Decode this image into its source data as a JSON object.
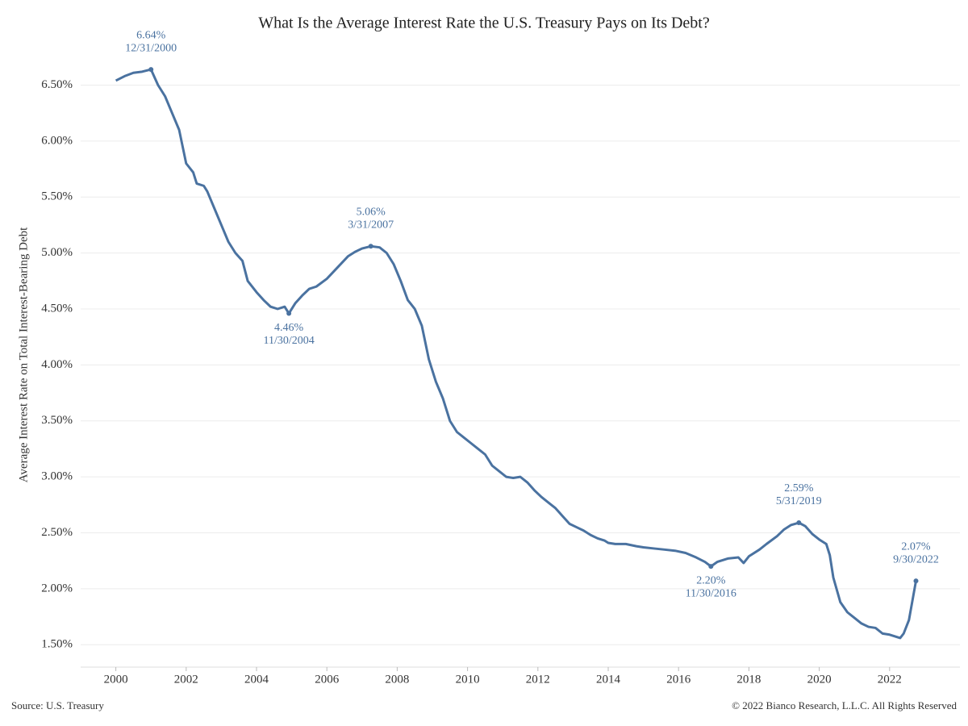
{
  "chart_data": {
    "type": "line",
    "title": "What Is the Average Interest Rate the U.S. Treasury Pays on Its Debt?",
    "y_label": "Average Interest Rate on Total Interest-Bearing Debt",
    "source": "Source: U.S. Treasury",
    "copyright": "© 2022 Bianco Research, L.L.C. All Rights Reserved",
    "color": "#4a72a0",
    "grid": true,
    "xlim": [
      1999,
      2024
    ],
    "ylim": [
      1.3,
      6.9
    ],
    "xticks": [
      2000,
      2002,
      2004,
      2006,
      2008,
      2010,
      2012,
      2014,
      2016,
      2018,
      2020,
      2022
    ],
    "yticks": [
      {
        "value": 1.5,
        "label": "1.50%"
      },
      {
        "value": 2.0,
        "label": "2.00%"
      },
      {
        "value": 2.5,
        "label": "2.50%"
      },
      {
        "value": 3.0,
        "label": "3.00%"
      },
      {
        "value": 3.5,
        "label": "3.50%"
      },
      {
        "value": 4.0,
        "label": "4.00%"
      },
      {
        "value": 4.5,
        "label": "4.50%"
      },
      {
        "value": 5.0,
        "label": "5.00%"
      },
      {
        "value": 5.5,
        "label": "5.50%"
      },
      {
        "value": 6.0,
        "label": "6.00%"
      },
      {
        "value": 6.5,
        "label": "6.50%"
      }
    ],
    "x": [
      2000.0,
      2000.25,
      2000.5,
      2000.75,
      2001.0,
      2001.2,
      2001.4,
      2001.6,
      2001.8,
      2002.0,
      2002.2,
      2002.3,
      2002.5,
      2002.6,
      2002.8,
      2003.0,
      2003.2,
      2003.4,
      2003.6,
      2003.75,
      2004.0,
      2004.2,
      2004.4,
      2004.6,
      2004.8,
      2004.92,
      2005.1,
      2005.3,
      2005.5,
      2005.7,
      2006.0,
      2006.3,
      2006.6,
      2006.8,
      2007.0,
      2007.25,
      2007.5,
      2007.7,
      2007.9,
      2008.1,
      2008.3,
      2008.5,
      2008.7,
      2008.9,
      2009.1,
      2009.3,
      2009.5,
      2009.7,
      2009.9,
      2010.1,
      2010.3,
      2010.5,
      2010.7,
      2010.9,
      2011.1,
      2011.3,
      2011.5,
      2011.7,
      2011.9,
      2012.1,
      2012.3,
      2012.5,
      2012.7,
      2012.9,
      2013.1,
      2013.3,
      2013.5,
      2013.7,
      2013.9,
      2014.0,
      2014.2,
      2014.5,
      2014.8,
      2015.0,
      2015.3,
      2015.6,
      2015.9,
      2016.2,
      2016.5,
      2016.75,
      2016.92,
      2017.1,
      2017.4,
      2017.7,
      2017.85,
      2018.0,
      2018.3,
      2018.5,
      2018.8,
      2019.0,
      2019.2,
      2019.42,
      2019.6,
      2019.8,
      2020.0,
      2020.2,
      2020.3,
      2020.4,
      2020.6,
      2020.8,
      2021.0,
      2021.2,
      2021.4,
      2021.6,
      2021.8,
      2022.0,
      2022.2,
      2022.3,
      2022.4,
      2022.55,
      2022.75
    ],
    "values": [
      6.54,
      6.58,
      6.61,
      6.62,
      6.64,
      6.5,
      6.4,
      6.25,
      6.1,
      5.8,
      5.72,
      5.62,
      5.6,
      5.55,
      5.4,
      5.25,
      5.1,
      5.0,
      4.93,
      4.75,
      4.65,
      4.58,
      4.52,
      4.5,
      4.52,
      4.46,
      4.55,
      4.62,
      4.68,
      4.7,
      4.77,
      4.87,
      4.97,
      5.01,
      5.04,
      5.06,
      5.05,
      5.0,
      4.9,
      4.75,
      4.58,
      4.5,
      4.35,
      4.05,
      3.85,
      3.7,
      3.5,
      3.4,
      3.35,
      3.3,
      3.25,
      3.2,
      3.1,
      3.05,
      3.0,
      2.99,
      3.0,
      2.95,
      2.88,
      2.82,
      2.77,
      2.72,
      2.65,
      2.58,
      2.55,
      2.52,
      2.48,
      2.45,
      2.43,
      2.41,
      2.4,
      2.4,
      2.38,
      2.37,
      2.36,
      2.35,
      2.34,
      2.32,
      2.28,
      2.24,
      2.2,
      2.24,
      2.27,
      2.28,
      2.23,
      2.29,
      2.35,
      2.4,
      2.47,
      2.53,
      2.57,
      2.59,
      2.56,
      2.49,
      2.44,
      2.4,
      2.3,
      2.1,
      1.88,
      1.79,
      1.74,
      1.69,
      1.66,
      1.65,
      1.6,
      1.59,
      1.57,
      1.56,
      1.6,
      1.72,
      2.07
    ],
    "annotations": [
      {
        "x": 2001.0,
        "y": 6.64,
        "label": "6.64%",
        "date": "12/31/2000"
      },
      {
        "x": 2004.92,
        "y": 4.46,
        "label": "4.46%",
        "date": "11/30/2004"
      },
      {
        "x": 2007.25,
        "y": 5.06,
        "label": "5.06%",
        "date": "3/31/2007"
      },
      {
        "x": 2016.92,
        "y": 2.2,
        "label": "2.20%",
        "date": "11/30/2016"
      },
      {
        "x": 2019.42,
        "y": 2.59,
        "label": "2.59%",
        "date": "5/31/2019"
      },
      {
        "x": 2022.75,
        "y": 2.07,
        "label": "2.07%",
        "date": "9/30/2022"
      }
    ]
  }
}
